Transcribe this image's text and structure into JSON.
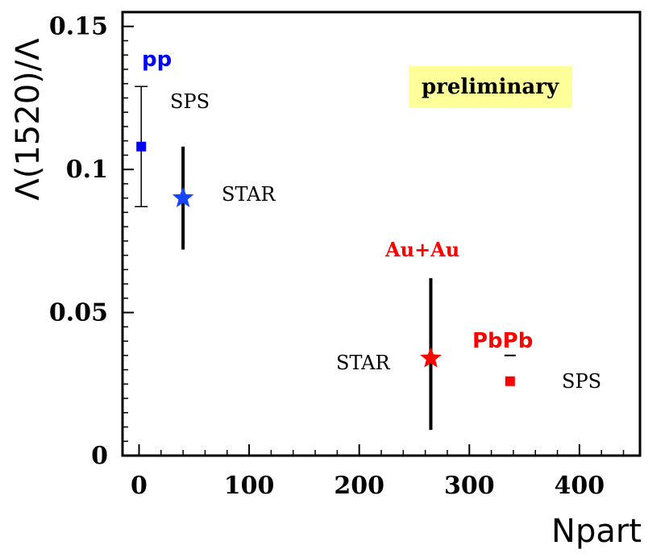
{
  "chart_data": {
    "type": "scatter",
    "title": "",
    "xlabel": "Npart",
    "ylabel": "Λ(1520)/Λ",
    "xlim": [
      -15,
      455
    ],
    "ylim": [
      0,
      0.155
    ],
    "grid": false,
    "x_ticks": [
      {
        "value": 0,
        "label": "0"
      },
      {
        "value": 100,
        "label": "100"
      },
      {
        "value": 200,
        "label": "200"
      },
      {
        "value": 300,
        "label": "300"
      },
      {
        "value": 400,
        "label": "400"
      }
    ],
    "y_ticks": [
      {
        "value": 0,
        "label": "0"
      },
      {
        "value": 0.05,
        "label": "0.05"
      },
      {
        "value": 0.1,
        "label": "0.1"
      },
      {
        "value": 0.15,
        "label": "0.15"
      }
    ],
    "points": [
      {
        "key": "pp-sps",
        "x": 2,
        "y": 0.108,
        "err_low": 0.087,
        "err_high": 0.129,
        "marker": "square",
        "color": "#0000ff",
        "error_style": "capped-thin"
      },
      {
        "key": "pp-star",
        "x": 40,
        "y": 0.09,
        "err_low": 0.072,
        "err_high": 0.108,
        "marker": "star",
        "color": "#1846ff",
        "error_style": "thick"
      },
      {
        "key": "auau-star",
        "x": 265,
        "y": 0.034,
        "err_low": 0.009,
        "err_high": 0.062,
        "marker": "star",
        "color": "#ff0000",
        "error_style": "thick"
      },
      {
        "key": "pbpb-sps",
        "x": 337,
        "y": 0.026,
        "err_low": 0.026,
        "err_high": 0.035,
        "marker": "square",
        "color": "#ff0000",
        "error_style": "dash"
      }
    ],
    "annotations": {
      "pp": "pp",
      "sps_pp": "SPS",
      "star_pp": "STAR",
      "auau": "Au+Au",
      "star_auau": "STAR",
      "pbpb": "PbPb",
      "sps_pbpb": "SPS",
      "preliminary": "preliminary"
    },
    "colors": {
      "pp": "#0000ff",
      "heavy_ion": "#ff0000",
      "preliminary_bg": "#ffff99"
    }
  }
}
